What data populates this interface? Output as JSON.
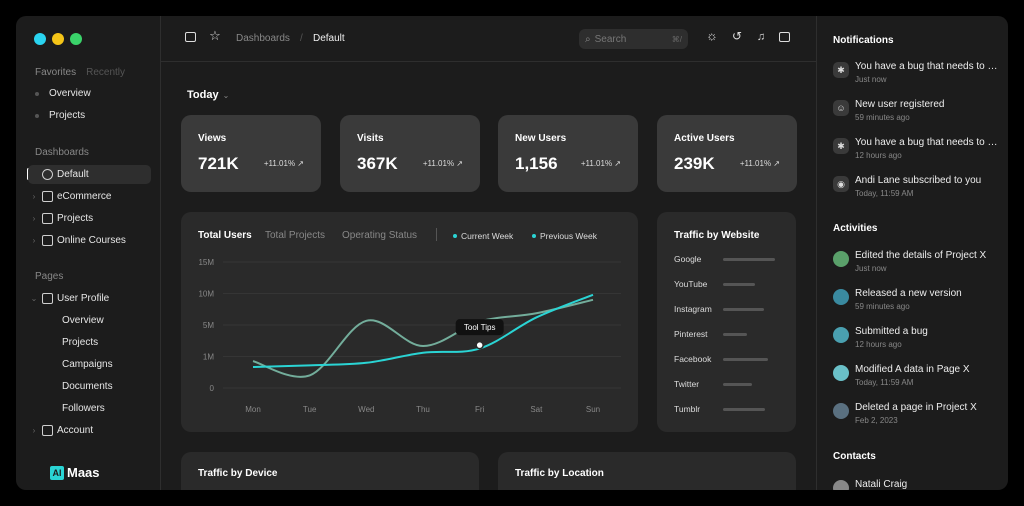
{
  "window": {
    "dot_colors": [
      "#2ad4f0",
      "#f5c518",
      "#3ad36a"
    ]
  },
  "sidebar": {
    "favorites_tab": "Favorites",
    "recently_tab": "Recently",
    "favorites": [
      "Overview",
      "Projects"
    ],
    "dashboards_label": "Dashboards",
    "dashboards": [
      {
        "label": "Default",
        "icon": "pie-chart-icon",
        "active": true
      },
      {
        "label": "eCommerce",
        "icon": "shopping-bag-icon"
      },
      {
        "label": "Projects",
        "icon": "folder-icon"
      },
      {
        "label": "Online Courses",
        "icon": "book-icon"
      }
    ],
    "pages_label": "Pages",
    "user_profile": {
      "label": "User Profile",
      "icon": "id-badge-icon",
      "children": [
        "Overview",
        "Projects",
        "Campaigns",
        "Documents",
        "Followers"
      ]
    },
    "account": {
      "label": "Account",
      "icon": "id-card-icon"
    },
    "brand": {
      "mark": "AI",
      "name": "Maas"
    }
  },
  "topbar": {
    "breadcrumb_parent": "Dashboards",
    "breadcrumb_sep": "/",
    "breadcrumb_current": "Default",
    "search_placeholder": "Search",
    "search_shortcut": "⌘/"
  },
  "main": {
    "period": "Today",
    "stats": [
      {
        "label": "Views",
        "value": "721K",
        "change": "+11.01%"
      },
      {
        "label": "Visits",
        "value": "367K",
        "change": "+11.01%"
      },
      {
        "label": "New Users",
        "value": "1,156",
        "change": "+11.01%"
      },
      {
        "label": "Active Users",
        "value": "239K",
        "change": "+11.01%"
      }
    ],
    "chart_tabs": [
      "Total Users",
      "Total Projects",
      "Operating Status"
    ],
    "legend": [
      "Current Week",
      "Previous Week"
    ],
    "tooltip": "Tool Tips",
    "traffic_website": {
      "title": "Traffic by Website",
      "rows": [
        {
          "label": "Google",
          "value": 0.9
        },
        {
          "label": "YouTube",
          "value": 0.55
        },
        {
          "label": "Instagram",
          "value": 0.7
        },
        {
          "label": "Pinterest",
          "value": 0.42
        },
        {
          "label": "Facebook",
          "value": 0.78
        },
        {
          "label": "Twitter",
          "value": 0.5
        },
        {
          "label": "Tumblr",
          "value": 0.72
        }
      ]
    },
    "traffic_device_title": "Traffic by Device",
    "traffic_location_title": "Traffic by Location"
  },
  "chart_data": {
    "type": "line",
    "categories": [
      "Mon",
      "Tue",
      "Wed",
      "Thu",
      "Fri",
      "Sat",
      "Sun"
    ],
    "y_ticks": [
      "15M",
      "10M",
      "5M",
      "1M",
      "0"
    ],
    "series": [
      {
        "name": "Current Week",
        "color": "#2ad4d4",
        "values": [
          2.5,
          2.7,
          3.0,
          4.2,
          4.7,
          8.4,
          11.1
        ]
      },
      {
        "name": "Previous Week",
        "color": "#8cd9c2",
        "values": [
          3.2,
          1.5,
          8.0,
          5.0,
          7.9,
          8.9,
          10.5
        ]
      }
    ]
  },
  "right_panel": {
    "notifications_title": "Notifications",
    "notifications": [
      {
        "icon": "bug-icon",
        "text": "You have a bug that needs to be fixed.",
        "time": "Just now"
      },
      {
        "icon": "user-icon",
        "text": "New user registered",
        "time": "59 minutes ago"
      },
      {
        "icon": "bug-icon",
        "text": "You have a bug that needs to be fixed.",
        "time": "12 hours ago"
      },
      {
        "icon": "broadcast-icon",
        "text": "Andi Lane subscribed to you",
        "time": "Today, 11:59 AM"
      }
    ],
    "activities_title": "Activities",
    "activities": [
      {
        "text": "Edited the details of Project X",
        "time": "Just now",
        "color": "#5aa06a"
      },
      {
        "text": "Released a new version",
        "time": "59 minutes ago",
        "color": "#3a8aa0"
      },
      {
        "text": "Submitted a bug",
        "time": "12 hours ago",
        "color": "#4aa0b0"
      },
      {
        "text": "Modified A data in Page X",
        "time": "Today, 11:59 AM",
        "color": "#6ac0c8"
      },
      {
        "text": "Deleted a page in Project X",
        "time": "Feb 2, 2023",
        "color": "#5a7080"
      }
    ],
    "contacts_title": "Contacts",
    "contacts": [
      "Natali Craig"
    ]
  }
}
